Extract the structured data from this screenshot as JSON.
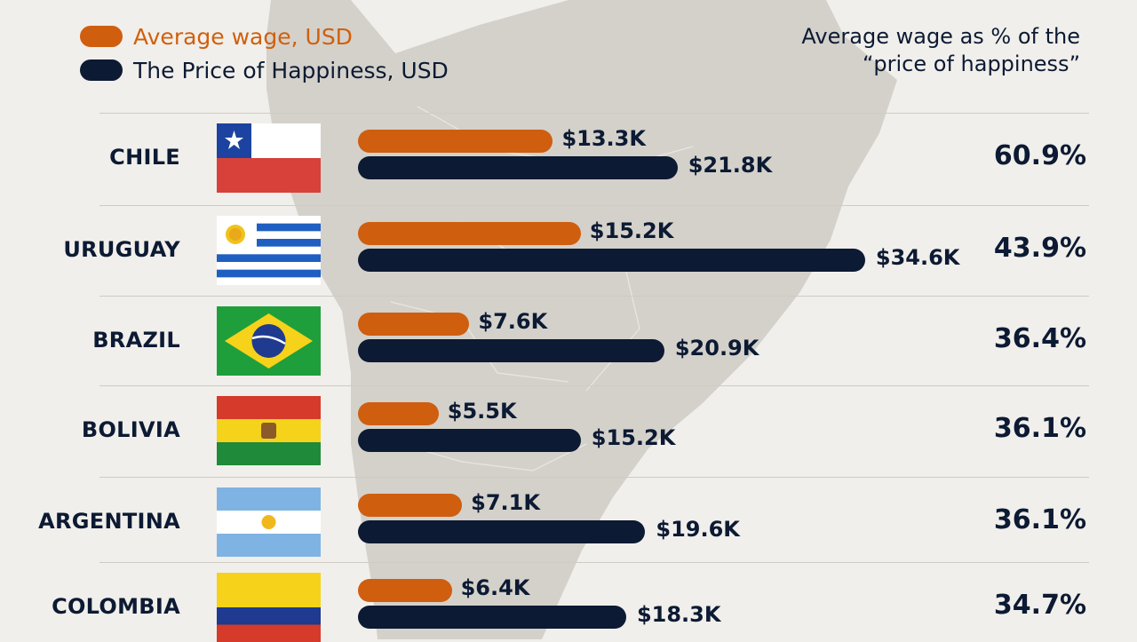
{
  "legend": {
    "wage_label": "Average wage, USD",
    "price_label": "The Price of Happiness, USD",
    "wage_color": "#cf5e0f",
    "price_color": "#0c1a33"
  },
  "pct_header": {
    "line1": "Average wage as % of the",
    "line2": "“price of happiness”"
  },
  "chart_data": {
    "type": "bar",
    "categories": [
      "CHILE",
      "URUGUAY",
      "BRAZIL",
      "BOLIVIA",
      "ARGENTINA",
      "COLOMBIA"
    ],
    "series": [
      {
        "name": "Average wage, USD",
        "values": [
          13.3,
          15.2,
          7.6,
          5.5,
          7.1,
          6.4
        ],
        "labels": [
          "$13.3K",
          "$15.2K",
          "$7.6K",
          "$5.5K",
          "$7.1K",
          "$6.4K"
        ],
        "color": "#cf5e0f"
      },
      {
        "name": "The Price of Happiness, USD",
        "values": [
          21.8,
          34.6,
          20.9,
          15.2,
          19.6,
          18.3
        ],
        "labels": [
          "$21.8K",
          "$34.6K",
          "$20.9K",
          "$15.2K",
          "$19.6K",
          "$18.3K"
        ],
        "color": "#0c1a33"
      }
    ],
    "percent_labels": [
      "60.9%",
      "43.9%",
      "36.4%",
      "36.1%",
      "36.1%",
      "34.7%"
    ],
    "percent_header": "Average wage as % of the “price of happiness”",
    "orientation": "horizontal",
    "units": "thousand USD",
    "grid": false,
    "legend_position": "top-left",
    "background": "map of South America"
  },
  "flags": [
    "chile-flag",
    "uruguay-flag",
    "brazil-flag",
    "bolivia-flag",
    "argentina-flag",
    "colombia-flag"
  ]
}
